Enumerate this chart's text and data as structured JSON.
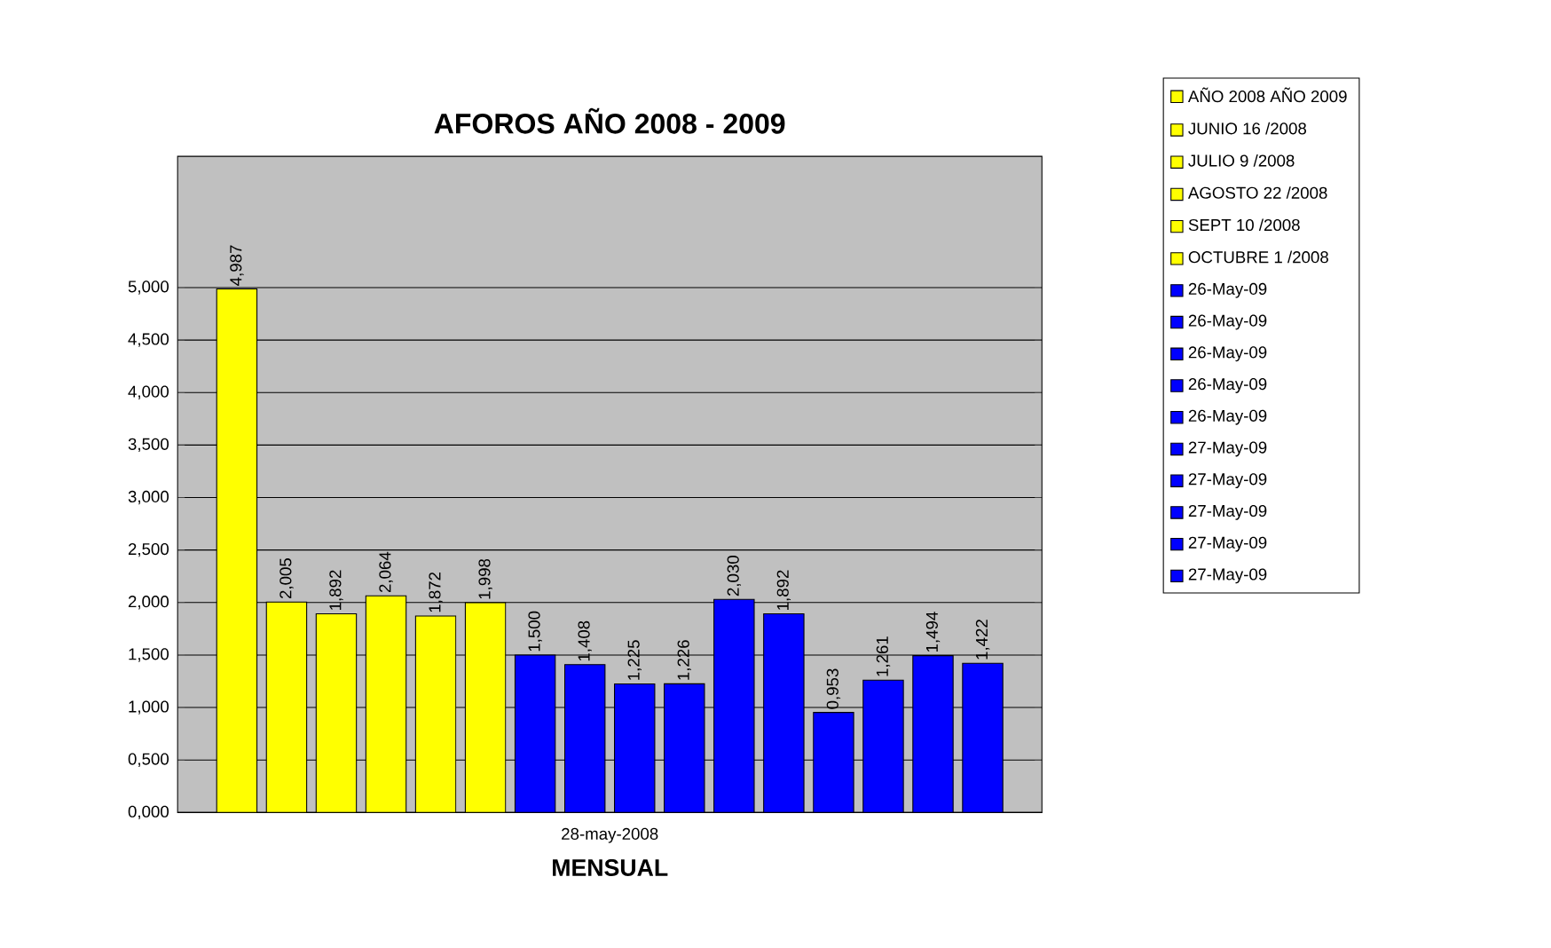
{
  "chart_data": {
    "type": "bar",
    "title": "AFOROS AÑO 2008 - 2009",
    "xlabel": "MENSUAL",
    "categories": [
      "28-may-2008"
    ],
    "series": [
      {
        "name": "AÑO 2008 AÑO 2009",
        "color": "#ffff00",
        "values": [
          4.987
        ],
        "value_labels": [
          "4,987"
        ]
      },
      {
        "name": "JUNIO 16 /2008",
        "color": "#ffff00",
        "values": [
          2.005
        ],
        "value_labels": [
          "2,005"
        ]
      },
      {
        "name": "JULIO 9 /2008",
        "color": "#ffff00",
        "values": [
          1.892
        ],
        "value_labels": [
          "1,892"
        ]
      },
      {
        "name": "AGOSTO 22 /2008",
        "color": "#ffff00",
        "values": [
          2.064
        ],
        "value_labels": [
          "2,064"
        ]
      },
      {
        "name": "SEPT 10 /2008",
        "color": "#ffff00",
        "values": [
          1.872
        ],
        "value_labels": [
          "1,872"
        ]
      },
      {
        "name": "OCTUBRE 1 /2008",
        "color": "#ffff00",
        "values": [
          1.998
        ],
        "value_labels": [
          "1,998"
        ]
      },
      {
        "name": "26-May-09",
        "color": "#0000ff",
        "values": [
          1.5
        ],
        "value_labels": [
          "1,500"
        ]
      },
      {
        "name": "26-May-09",
        "color": "#0000ff",
        "values": [
          1.408
        ],
        "value_labels": [
          "1,408"
        ]
      },
      {
        "name": "26-May-09",
        "color": "#0000ff",
        "values": [
          1.225
        ],
        "value_labels": [
          "1,225"
        ]
      },
      {
        "name": "26-May-09",
        "color": "#0000ff",
        "values": [
          1.226
        ],
        "value_labels": [
          "1,226"
        ]
      },
      {
        "name": "26-May-09",
        "color": "#0000ff",
        "values": [
          2.03
        ],
        "value_labels": [
          "2,030"
        ]
      },
      {
        "name": "27-May-09",
        "color": "#0000ff",
        "values": [
          1.892
        ],
        "value_labels": [
          "1,892"
        ]
      },
      {
        "name": "27-May-09",
        "color": "#0000ff",
        "values": [
          0.953
        ],
        "value_labels": [
          "0,953"
        ]
      },
      {
        "name": "27-May-09",
        "color": "#0000ff",
        "values": [
          1.261
        ],
        "value_labels": [
          "1,261"
        ]
      },
      {
        "name": "27-May-09",
        "color": "#0000ff",
        "values": [
          1.494
        ],
        "value_labels": [
          "1,494"
        ]
      },
      {
        "name": "27-May-09",
        "color": "#0000ff",
        "values": [
          1.422
        ],
        "value_labels": [
          "1,422"
        ]
      }
    ],
    "ylim": [
      0,
      6.25
    ],
    "yticks": [
      {
        "value": 0,
        "label": "0,000"
      },
      {
        "value": 0.5,
        "label": "0,500"
      },
      {
        "value": 1,
        "label": "1,000"
      },
      {
        "value": 1.5,
        "label": "1,500"
      },
      {
        "value": 2,
        "label": "2,000"
      },
      {
        "value": 2.5,
        "label": "2,500"
      },
      {
        "value": 3,
        "label": "3,000"
      },
      {
        "value": 3.5,
        "label": "3,500"
      },
      {
        "value": 4,
        "label": "4,000"
      },
      {
        "value": 4.5,
        "label": "4,500"
      },
      {
        "value": 5,
        "label": "5,000"
      }
    ],
    "grid": "y",
    "legend": "right"
  }
}
